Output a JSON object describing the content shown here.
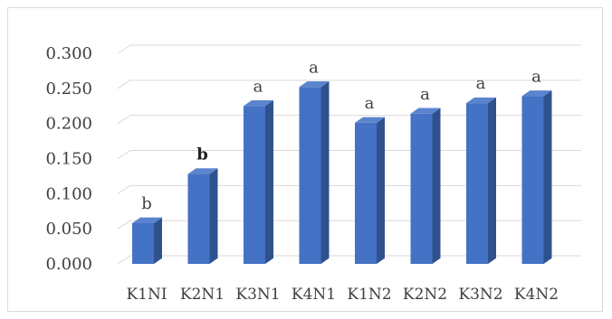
{
  "chart_data": {
    "type": "bar",
    "categories": [
      "K1NI",
      "K2N1",
      "K3N1",
      "K4N1",
      "K1N2",
      "K2N2",
      "K3N2",
      "K4N2"
    ],
    "values": [
      0.058,
      0.128,
      0.225,
      0.252,
      0.201,
      0.214,
      0.229,
      0.239
    ],
    "data_labels": [
      "b",
      "b",
      "a",
      "a",
      "a",
      "a",
      "a",
      "a"
    ],
    "data_label_bold": [
      false,
      true,
      false,
      false,
      false,
      false,
      false,
      false
    ],
    "yticks": [
      "0.000",
      "0.050",
      "0.100",
      "0.150",
      "0.200",
      "0.250",
      "0.300"
    ],
    "ylim": [
      0,
      0.3
    ],
    "grid": true,
    "legend": "none",
    "bar_color": "#4472c4",
    "bar_side_color": "#2f528f",
    "bar_top_color": "#5b84cf"
  }
}
